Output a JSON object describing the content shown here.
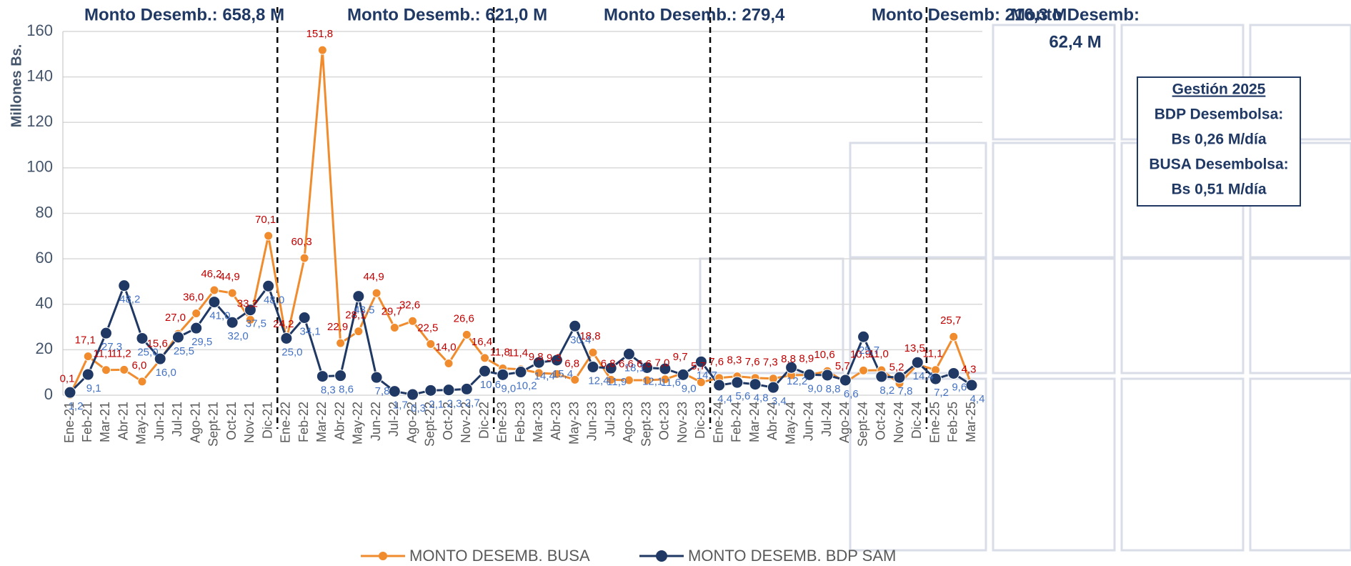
{
  "chart_data": {
    "type": "line",
    "y_label": "Millones Bs.",
    "categories": [
      "Ene-21",
      "Feb-21",
      "Mar-21",
      "Abr-21",
      "May-21",
      "Jun-21",
      "Jul-21",
      "Ago-21",
      "Sept-21",
      "Oct-21",
      "Nov-21",
      "Dic-21",
      "Ene-22",
      "Feb-22",
      "Mar-22",
      "Abr-22",
      "May-22",
      "Jun-22",
      "Jul-22",
      "Ago-22",
      "Sept-22",
      "Oct-22",
      "Nov-22",
      "Dic-22",
      "Ene-23",
      "Feb-23",
      "Mar-23",
      "Abr-23",
      "May-23",
      "Jun-23",
      "Jul-23",
      "Ago-23",
      "Sept-23",
      "Oct-23",
      "Nov-23",
      "Dic-23",
      "Ene-24",
      "Feb-24",
      "Mar-24",
      "Abr-24",
      "May-24",
      "Jun-24",
      "Jul-24",
      "Ago-24",
      "Sept-24",
      "Oct-24",
      "Nov-24",
      "Dic-24",
      "Ene-25",
      "Feb-25",
      "Mar-25"
    ],
    "series": [
      {
        "name": "MONTO DESEMB. BUSA",
        "color": "#f08c2e",
        "label_color": "#c00000",
        "values": [
          0.1,
          17.1,
          11.1,
          11.2,
          6.0,
          15.6,
          27.0,
          36.0,
          46.2,
          44.9,
          33.2,
          70.1,
          24.2,
          60.3,
          151.8,
          22.9,
          28.1,
          44.9,
          29.7,
          32.6,
          22.5,
          14.0,
          26.6,
          16.4,
          11.8,
          11.4,
          9.8,
          9.3,
          6.8,
          18.8,
          6.8,
          6.6,
          6.6,
          7.0,
          9.7,
          5.7,
          7.6,
          8.3,
          7.6,
          7.3,
          8.8,
          8.9,
          10.6,
          5.7,
          10.9,
          11.0,
          5.2,
          13.5,
          11.1,
          25.7,
          4.3
        ],
        "value_labels": [
          "0,1",
          "17,1",
          "11,1",
          "11,2",
          "6,0",
          "15,6",
          "27,0",
          "36,0",
          "46,2",
          "44,9",
          "33,2",
          "70,1",
          "24,2",
          "60,3",
          "151,8",
          "22,9",
          "28,1",
          "44,9",
          "29,7",
          "32,6",
          "22,5",
          "14,0",
          "26,6",
          "16,4",
          "11,8",
          "11,4",
          "9,8",
          "9,3",
          "6,8",
          "18,8",
          "6,8",
          "6,6",
          "6,6",
          "7,0",
          "9,7",
          "5,7",
          "7,6",
          "8,3",
          "7,6",
          "7,3",
          "8,8",
          "8,9",
          "10,6",
          "5,7",
          "10,9",
          "11,0",
          "5,2",
          "13,5",
          "11,1",
          "25,7",
          "4,3"
        ]
      },
      {
        "name": "MONTO DESEMB. BDP SAM",
        "color": "#1f3864",
        "label_color": "#4472c4",
        "values": [
          1.2,
          9.1,
          27.3,
          48.2,
          25.0,
          16.0,
          25.5,
          29.5,
          41.0,
          32.0,
          37.5,
          48.0,
          25.0,
          34.1,
          8.3,
          8.6,
          43.5,
          7.8,
          1.7,
          0.3,
          2.1,
          2.3,
          2.7,
          10.6,
          9.0,
          10.2,
          14.4,
          15.4,
          30.4,
          12.4,
          11.9,
          18.1,
          12.1,
          11.6,
          9.0,
          14.7,
          4.4,
          5.6,
          4.8,
          3.4,
          12.2,
          9.0,
          8.8,
          6.6,
          25.7,
          8.2,
          7.8,
          14.4,
          7.2,
          9.6,
          4.4
        ],
        "value_labels": [
          "1,2",
          "9,1",
          "27,3",
          "48,2",
          "25,0",
          "16,0",
          "25,5",
          "29,5",
          "41,0",
          "32,0",
          "37,5",
          "48,0",
          "25,0",
          "34,1",
          "8,3",
          "8,6",
          "43,5",
          "7,8",
          "1,7",
          "0,3",
          "2,1",
          "2,3",
          "2,7",
          "10,6",
          "9,0",
          "10,2",
          "14,4",
          "15,4",
          "30,4",
          "12,4",
          "11,9",
          "18,1",
          "12,1",
          "11,6",
          "9,0",
          "14,7",
          "4,4",
          "5,6",
          "4,8",
          "3,4",
          "12,2",
          "9,0",
          "8,8",
          "6,6",
          "25,7",
          "8,2",
          "7,8",
          "14,4",
          "7,2",
          "9,6",
          "4,4"
        ]
      }
    ],
    "ylim": [
      0,
      160
    ],
    "yticks": [
      0,
      20,
      40,
      60,
      80,
      100,
      120,
      140,
      160
    ],
    "grid": true,
    "legend": "bottom",
    "annotations": [
      "Monto Desemb.: 658,8 M",
      "Monto Desemb.: 621,0 M",
      "Monto Desemb.: 279,4",
      "Monto Desemb: 216,3 M",
      "Monto Desemb:",
      "62,4 M"
    ],
    "info_box": [
      "Gestión 2025",
      "BDP Desembolsa:",
      "Bs 0,26 M/día",
      "BUSA Desembolsa:",
      "Bs 0,51 M/día"
    ]
  }
}
